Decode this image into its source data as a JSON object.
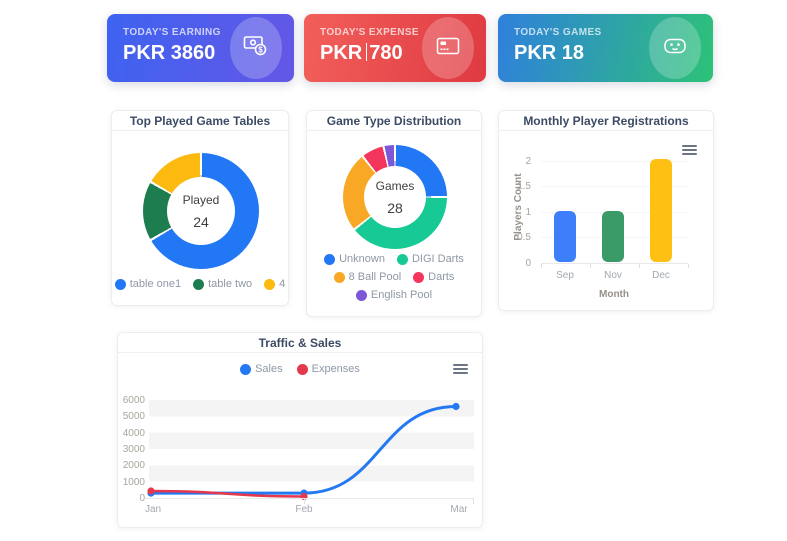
{
  "stats": [
    {
      "label": "TODAY'S EARNING",
      "value": "PKR 3860",
      "icon": "money-icon",
      "gradient_from": "#3e63f0",
      "gradient_to": "#6457e6"
    },
    {
      "label": "TODAY'S EXPENSE",
      "value_prefix": "PKR",
      "value_amount": "780",
      "has_text_caret": true,
      "icon": "credit-card-icon",
      "gradient_from": "#f25f5a",
      "gradient_to": "#df3a42"
    },
    {
      "label": "TODAY'S GAMES",
      "value": "PKR 18",
      "icon": "gamepad-icon",
      "gradient_from": "#2f80dc",
      "gradient_to": "#2dc278"
    }
  ],
  "chart_data": [
    {
      "type": "doughnut",
      "title": "Top Played Game Tables",
      "center_label": "Played",
      "center_value": "24",
      "labels": [
        "table one1",
        "table two",
        "4"
      ],
      "values": [
        16,
        4,
        4
      ],
      "colors": [
        "#2277f4",
        "#1d7d4e",
        "#fcba10"
      ],
      "legend_position": "bottom"
    },
    {
      "type": "doughnut",
      "title": "Game Type Distribution",
      "center_label": "Games",
      "center_value": "28",
      "labels": [
        "Unknown",
        "DIGI Darts",
        "8 Ball Pool",
        "Darts",
        "English Pool"
      ],
      "values": [
        7,
        11,
        7,
        2,
        1
      ],
      "colors": [
        "#2277f4",
        "#16c995",
        "#f9a825",
        "#f5365c",
        "#7c58d8"
      ],
      "legend_position": "bottom"
    },
    {
      "type": "bar",
      "title": "Monthly Player Registrations",
      "categories": [
        "Sep",
        "Nov",
        "Dec"
      ],
      "values": [
        1,
        1,
        2
      ],
      "colors": [
        "#3d7ff9",
        "#3a9a68",
        "#fdc013"
      ],
      "xlabel": "Month",
      "ylabel": "Players Count",
      "yticks": [
        2,
        1.5,
        1,
        0.5,
        0
      ],
      "ylim": [
        0,
        2
      ],
      "grid": "faint-horizontal"
    },
    {
      "type": "line",
      "title": "Traffic & Sales",
      "x": [
        "Jan",
        "Feb",
        "Mar"
      ],
      "series": [
        {
          "name": "Sales",
          "color": "#2479f3",
          "values": [
            300,
            300,
            5600
          ]
        },
        {
          "name": "Expenses",
          "color": "#e5384c",
          "values": [
            430,
            90,
            null
          ]
        }
      ],
      "yticks": [
        6000,
        5000,
        4000,
        3000,
        2000,
        1000,
        0
      ],
      "ylim": [
        0,
        6000
      ],
      "grid": "striped-rows",
      "legend_position": "top-center"
    }
  ]
}
